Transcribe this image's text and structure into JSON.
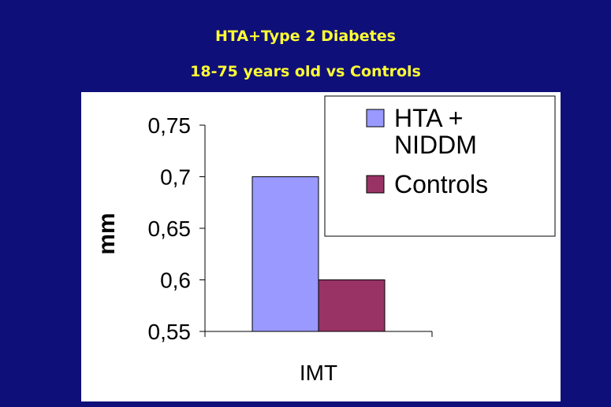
{
  "chart_data": {
    "type": "bar",
    "title": "HTA+Type 2 Diabetes",
    "subtitle": "18-75 years old vs Controls",
    "xlabel": "",
    "ylabel": "mm",
    "categories": [
      "IMT"
    ],
    "ylim": [
      0.55,
      0.75
    ],
    "yticks": [
      "0,75",
      "0,7",
      "0,65",
      "0,6",
      "0,55"
    ],
    "ytick_values": [
      0.75,
      0.7,
      0.65,
      0.6,
      0.55
    ],
    "series": [
      {
        "name": "HTA + NIDDM",
        "name_lines": [
          "HTA +",
          "NIDDM"
        ],
        "values": [
          0.7
        ],
        "color": "#9999ff"
      },
      {
        "name": "Controls",
        "name_lines": [
          "Controls"
        ],
        "values": [
          0.6
        ],
        "color": "#993366"
      }
    ],
    "grid": false,
    "legend_position": "top-right"
  }
}
